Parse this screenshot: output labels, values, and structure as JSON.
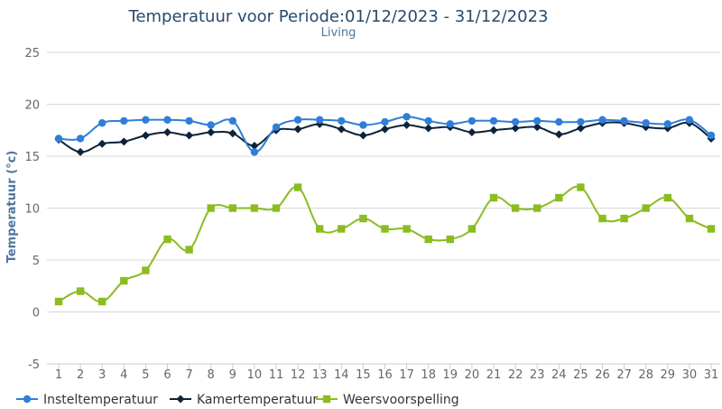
{
  "chart_data": {
    "type": "line",
    "title": "Temperatuur voor Periode:01/12/2023 - 31/12/2023",
    "subtitle": "Living",
    "ylabel": "Temperatuur (°c)",
    "xlabel": "",
    "ylim": [
      -5,
      25
    ],
    "yticks": [
      -5,
      0,
      5,
      10,
      15,
      20,
      25
    ],
    "grid": true,
    "categories": [
      "1",
      "2",
      "3",
      "4",
      "5",
      "6",
      "7",
      "8",
      "9",
      "10",
      "11",
      "12",
      "13",
      "14",
      "15",
      "16",
      "17",
      "18",
      "19",
      "20",
      "21",
      "22",
      "23",
      "24",
      "25",
      "26",
      "27",
      "28",
      "29",
      "30",
      "31"
    ],
    "series": [
      {
        "name": "Insteltemperatuur",
        "color": "#2f7ed8",
        "marker": "circle",
        "values": [
          16.7,
          16.7,
          18.2,
          18.4,
          18.5,
          18.5,
          18.4,
          18.0,
          18.4,
          15.4,
          17.8,
          18.5,
          18.5,
          18.4,
          18.0,
          18.3,
          18.8,
          18.4,
          18.1,
          18.4,
          18.4,
          18.3,
          18.4,
          18.3,
          18.3,
          18.5,
          18.4,
          18.2,
          18.1,
          18.5,
          17.0
        ]
      },
      {
        "name": "Kamertemperatuur",
        "color": "#0d233a",
        "marker": "diamond",
        "values": [
          16.6,
          15.4,
          16.2,
          16.4,
          17.0,
          17.3,
          17.0,
          17.3,
          17.2,
          16.0,
          17.5,
          17.6,
          18.1,
          17.6,
          17.0,
          17.6,
          18.0,
          17.7,
          17.8,
          17.3,
          17.5,
          17.7,
          17.8,
          17.1,
          17.7,
          18.2,
          18.2,
          17.8,
          17.7,
          18.2,
          16.7
        ]
      },
      {
        "name": "Weersvoorspelling",
        "color": "#8bbc21",
        "marker": "square",
        "values": [
          1,
          2,
          1,
          3,
          4,
          7,
          6,
          10,
          10,
          10,
          10,
          12,
          8,
          8,
          9,
          8,
          8,
          7,
          7,
          8,
          11,
          10,
          10,
          11,
          12,
          9,
          9,
          10,
          11,
          9,
          8
        ]
      }
    ],
    "legend_position": "bottom-left"
  }
}
